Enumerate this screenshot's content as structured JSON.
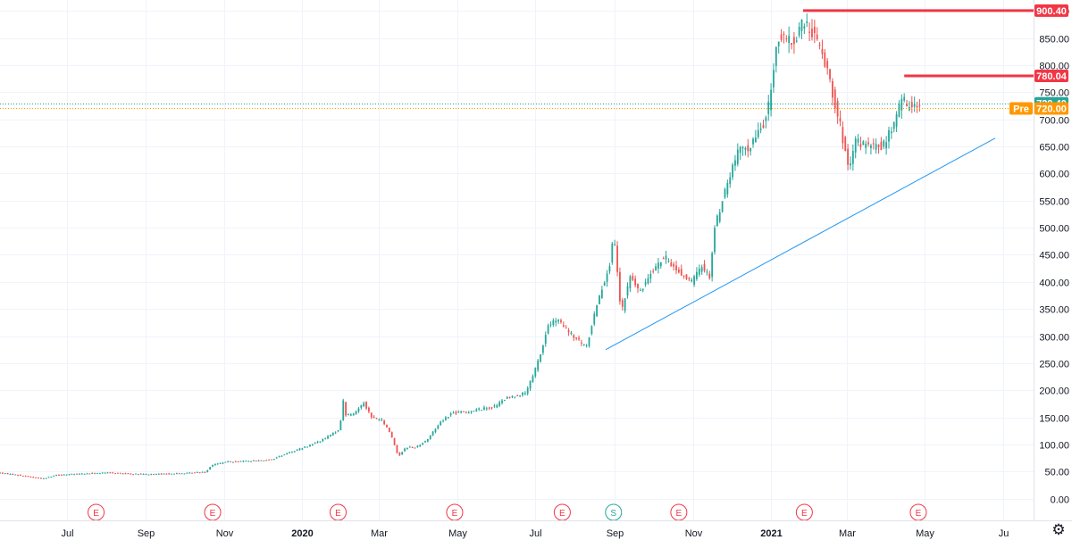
{
  "chart_data": {
    "type": "candlestick",
    "y_axis": {
      "ticks": [
        "0.00",
        "50.00",
        "100.00",
        "150.00",
        "200.00",
        "250.00",
        "300.00",
        "350.00",
        "400.00",
        "450.00",
        "500.00",
        "550.00",
        "600.00",
        "650.00",
        "700.00",
        "750.00",
        "800.00",
        "850.00",
        "900.00"
      ],
      "tick_values": [
        0,
        50,
        100,
        150,
        200,
        250,
        300,
        350,
        400,
        450,
        500,
        550,
        600,
        650,
        700,
        750,
        800,
        850,
        900
      ],
      "range": [
        -40,
        920
      ]
    },
    "x_axis": {
      "labels": [
        {
          "text": "Jul",
          "date": "2019-07-01",
          "bold": false
        },
        {
          "text": "Sep",
          "date": "2019-09-01",
          "bold": false
        },
        {
          "text": "Nov",
          "date": "2019-11-01",
          "bold": false
        },
        {
          "text": "2020",
          "date": "2020-01-01",
          "bold": true
        },
        {
          "text": "Mar",
          "date": "2020-03-01",
          "bold": false
        },
        {
          "text": "May",
          "date": "2020-05-01",
          "bold": false
        },
        {
          "text": "Jul",
          "date": "2020-07-01",
          "bold": false
        },
        {
          "text": "Sep",
          "date": "2020-09-01",
          "bold": false
        },
        {
          "text": "Nov",
          "date": "2020-11-01",
          "bold": false
        },
        {
          "text": "2021",
          "date": "2021-01-01",
          "bold": true
        },
        {
          "text": "Mar",
          "date": "2021-03-01",
          "bold": false
        },
        {
          "text": "May",
          "date": "2021-05-01",
          "bold": false
        },
        {
          "text": "Ju",
          "date": "2021-07-01",
          "bold": false
        }
      ],
      "range": [
        "2019-05-10",
        "2021-07-25"
      ]
    },
    "price_path": [
      [
        "2019-05-10",
        48
      ],
      [
        "2019-05-25",
        44
      ],
      [
        "2019-06-05",
        40
      ],
      [
        "2019-06-15",
        37
      ],
      [
        "2019-06-25",
        44
      ],
      [
        "2019-07-15",
        46
      ],
      [
        "2019-08-05",
        48
      ],
      [
        "2019-08-20",
        46
      ],
      [
        "2019-09-05",
        45
      ],
      [
        "2019-09-20",
        46
      ],
      [
        "2019-10-05",
        47
      ],
      [
        "2019-10-20",
        50
      ],
      [
        "2019-10-24",
        62
      ],
      [
        "2019-11-05",
        68
      ],
      [
        "2019-11-25",
        70
      ],
      [
        "2019-12-10",
        72
      ],
      [
        "2019-12-20",
        82
      ],
      [
        "2020-01-05",
        95
      ],
      [
        "2020-01-20",
        110
      ],
      [
        "2020-02-01",
        128
      ],
      [
        "2020-02-04",
        180
      ],
      [
        "2020-02-06",
        155
      ],
      [
        "2020-02-12",
        156
      ],
      [
        "2020-02-20",
        178
      ],
      [
        "2020-02-26",
        150
      ],
      [
        "2020-03-05",
        145
      ],
      [
        "2020-03-12",
        120
      ],
      [
        "2020-03-18",
        78
      ],
      [
        "2020-03-24",
        95
      ],
      [
        "2020-04-01",
        95
      ],
      [
        "2020-04-10",
        110
      ],
      [
        "2020-04-20",
        142
      ],
      [
        "2020-04-29",
        158
      ],
      [
        "2020-05-10",
        160
      ],
      [
        "2020-05-20",
        165
      ],
      [
        "2020-06-01",
        170
      ],
      [
        "2020-06-10",
        185
      ],
      [
        "2020-06-25",
        195
      ],
      [
        "2020-07-01",
        225
      ],
      [
        "2020-07-08",
        275
      ],
      [
        "2020-07-13",
        320
      ],
      [
        "2020-07-20",
        330
      ],
      [
        "2020-08-01",
        300
      ],
      [
        "2020-08-12",
        280
      ],
      [
        "2020-08-20",
        360
      ],
      [
        "2020-08-31",
        440
      ],
      [
        "2020-09-02",
        490
      ],
      [
        "2020-09-08",
        340
      ],
      [
        "2020-09-15",
        410
      ],
      [
        "2020-09-23",
        380
      ],
      [
        "2020-10-01",
        420
      ],
      [
        "2020-10-12",
        445
      ],
      [
        "2020-10-22",
        420
      ],
      [
        "2020-11-02",
        400
      ],
      [
        "2020-11-10",
        430
      ],
      [
        "2020-11-16",
        410
      ],
      [
        "2020-11-20",
        500
      ],
      [
        "2020-11-27",
        560
      ],
      [
        "2020-12-08",
        640
      ],
      [
        "2020-12-18",
        650
      ],
      [
        "2020-12-31",
        705
      ],
      [
        "2021-01-08",
        850
      ],
      [
        "2021-01-22",
        840
      ],
      [
        "2021-01-26",
        880
      ],
      [
        "2021-02-05",
        860
      ],
      [
        "2021-02-15",
        800
      ],
      [
        "2021-02-25",
        700
      ],
      [
        "2021-03-05",
        600
      ],
      [
        "2021-03-10",
        660
      ],
      [
        "2021-03-20",
        650
      ],
      [
        "2021-03-31",
        650
      ],
      [
        "2021-04-09",
        690
      ],
      [
        "2021-04-15",
        740
      ],
      [
        "2021-04-20",
        720
      ],
      [
        "2021-04-26",
        735
      ],
      [
        "2021-04-28",
        725
      ]
    ],
    "candle_interval_days": 2,
    "series_colors": {
      "up": "#26a69a",
      "down": "#ef5350"
    },
    "trendline": {
      "from": {
        "date": "2020-08-25",
        "value": 275
      },
      "to": {
        "date": "2021-06-25",
        "value": 665
      },
      "color": "#2196f3"
    },
    "horizontal_rays": [
      {
        "start": "2021-01-26",
        "value": 900.4,
        "color": "#f23645"
      },
      {
        "start": "2021-04-15",
        "value": 780.04,
        "color": "#f23645"
      }
    ],
    "price_lines": [
      {
        "value": 729.4,
        "color": "#26a69a"
      },
      {
        "value": 720.0,
        "color": "#ff9800"
      }
    ],
    "price_tags": [
      {
        "text": "900.40",
        "value": 900.4,
        "color": "#f23645"
      },
      {
        "text": "780.04",
        "value": 780.04,
        "color": "#f23645"
      },
      {
        "text": "729.40",
        "value": 729.4,
        "color": "#26a69a"
      },
      {
        "text": "720.00",
        "value": 720.0,
        "color": "#ff9800",
        "prefix": "Pre"
      }
    ],
    "events": [
      {
        "label": "E",
        "date": "2019-07-24",
        "color": "#f23645"
      },
      {
        "label": "E",
        "date": "2019-10-23",
        "color": "#f23645"
      },
      {
        "label": "E",
        "date": "2020-01-29",
        "color": "#f23645"
      },
      {
        "label": "E",
        "date": "2020-04-29",
        "color": "#f23645"
      },
      {
        "label": "E",
        "date": "2020-07-22",
        "color": "#f23645"
      },
      {
        "label": "S",
        "date": "2020-08-31",
        "color": "#26a69a"
      },
      {
        "label": "E",
        "date": "2020-10-21",
        "color": "#f23645"
      },
      {
        "label": "E",
        "date": "2021-01-27",
        "color": "#f23645"
      },
      {
        "label": "E",
        "date": "2021-04-26",
        "color": "#f23645"
      }
    ],
    "grid": true,
    "legend": "none"
  },
  "ui": {
    "settings_icon": "gear-icon",
    "settings_glyph": "⚙"
  }
}
